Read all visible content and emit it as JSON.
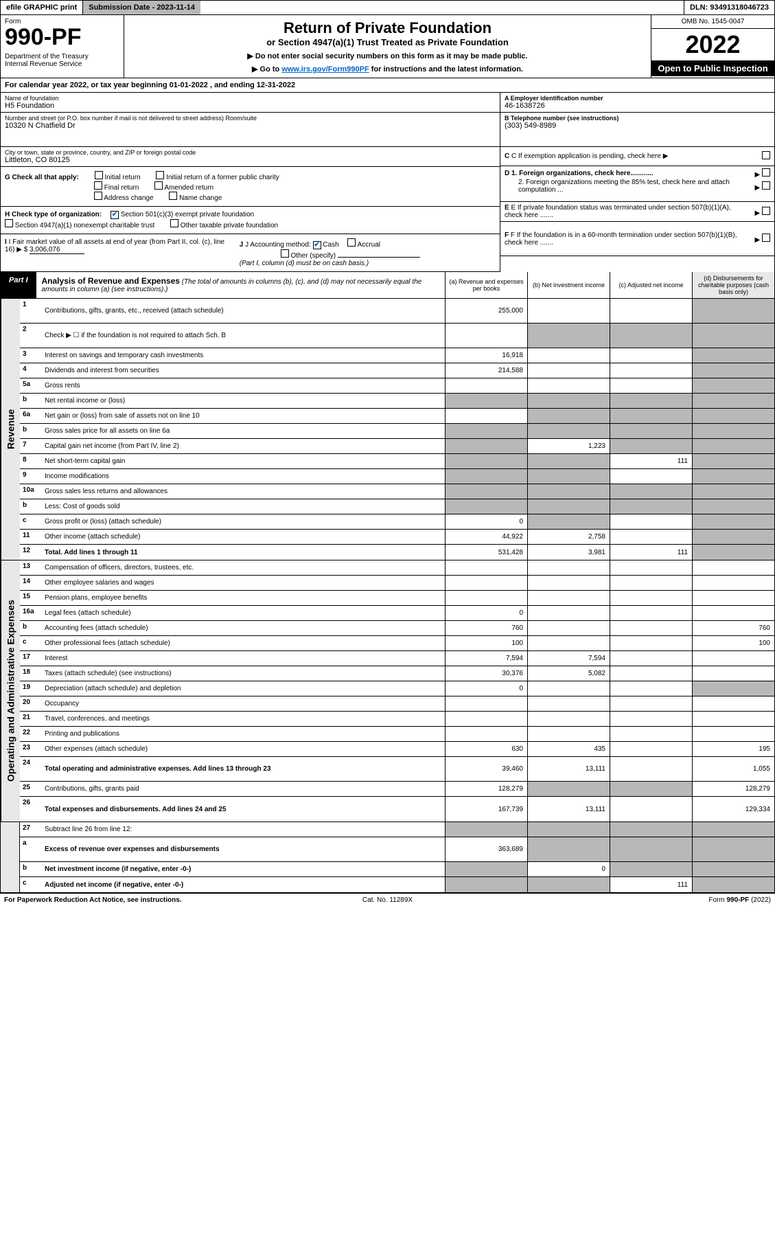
{
  "top": {
    "efile": "efile GRAPHIC print",
    "sub_label": "Submission Date - 2023-11-14",
    "dln": "DLN: 93491318046723"
  },
  "header": {
    "form_label": "Form",
    "form_no": "990-PF",
    "dept": "Department of the Treasury\nInternal Revenue Service",
    "title": "Return of Private Foundation",
    "subtitle": "or Section 4947(a)(1) Trust Treated as Private Foundation",
    "note1": "▶ Do not enter social security numbers on this form as it may be made public.",
    "note2_pre": "▶ Go to ",
    "note2_link": "www.irs.gov/Form990PF",
    "note2_post": " for instructions and the latest information.",
    "omb": "OMB No. 1545-0047",
    "year": "2022",
    "inspect": "Open to Public Inspection"
  },
  "cal_year": "For calendar year 2022, or tax year beginning 01-01-2022                          , and ending 12-31-2022",
  "info": {
    "name_label": "Name of foundation",
    "name": "H5 Foundation",
    "addr_label": "Number and street (or P.O. box number if mail is not delivered to street address)          Room/suite",
    "addr": "10320 N Chatfield Dr",
    "city_label": "City or town, state or province, country, and ZIP or foreign postal code",
    "city": "Littleton, CO  80125",
    "a_label": "A Employer identification number",
    "a_val": "46-1638726",
    "b_label": "B Telephone number (see instructions)",
    "b_val": "(303) 549-8989",
    "c_label": "C If exemption application is pending, check here",
    "d1": "D 1. Foreign organizations, check here............",
    "d2": "2. Foreign organizations meeting the 85% test, check here and attach computation ...",
    "e_label": "E  If private foundation status was terminated under section 507(b)(1)(A), check here .......",
    "f_label": "F  If the foundation is in a 60-month termination under section 507(b)(1)(B), check here .......",
    "g_label": "G Check all that apply:",
    "g_opts": [
      "Initial return",
      "Initial return of a former public charity",
      "Final return",
      "Amended return",
      "Address change",
      "Name change"
    ],
    "h_label": "H Check type of organization:",
    "h_opts": [
      "Section 501(c)(3) exempt private foundation",
      "Section 4947(a)(1) nonexempt charitable trust",
      "Other taxable private foundation"
    ],
    "i_label": "I Fair market value of all assets at end of year (from Part II, col. (c), line 16)",
    "i_val": "3,006,076",
    "j_label": "J Accounting method:",
    "j_opts": [
      "Cash",
      "Accrual",
      "Other (specify)"
    ],
    "j_note": "(Part I, column (d) must be on cash basis.)"
  },
  "part1": {
    "label": "Part I",
    "title": "Analysis of Revenue and Expenses",
    "title_note": "(The total of amounts in columns (b), (c), and (d) may not necessarily equal the amounts in column (a) (see instructions).)",
    "col_a": "(a)   Revenue and expenses per books",
    "col_b": "(b)   Net investment income",
    "col_c": "(c)   Adjusted net income",
    "col_d": "(d)   Disbursements for charitable purposes (cash basis only)"
  },
  "side_labels": {
    "revenue": "Revenue",
    "expenses": "Operating and Administrative Expenses"
  },
  "rows": [
    {
      "n": "1",
      "desc": "Contributions, gifts, grants, etc., received (attach schedule)",
      "a": "255,000",
      "b": "",
      "c": "",
      "d": "",
      "d_grey": true,
      "tall": true
    },
    {
      "n": "2",
      "desc": "Check ▶ ☐ if the foundation is not required to attach Sch. B",
      "a": "",
      "b": "",
      "c": "",
      "d": "",
      "all_grey_bcd": true,
      "tall": true
    },
    {
      "n": "3",
      "desc": "Interest on savings and temporary cash investments",
      "a": "16,918",
      "b": "",
      "c": "",
      "d": "",
      "d_grey": true
    },
    {
      "n": "4",
      "desc": "Dividends and interest from securities",
      "a": "214,588",
      "b": "",
      "c": "",
      "d": "",
      "d_grey": true
    },
    {
      "n": "5a",
      "desc": "Gross rents",
      "a": "",
      "b": "",
      "c": "",
      "d": "",
      "d_grey": true
    },
    {
      "n": "b",
      "desc": "Net rental income or (loss)",
      "a": "",
      "b": "",
      "c": "",
      "d": "",
      "all_grey": true,
      "short": true
    },
    {
      "n": "6a",
      "desc": "Net gain or (loss) from sale of assets not on line 10",
      "a": "",
      "b": "",
      "c": "",
      "d": "",
      "bcd_grey": true
    },
    {
      "n": "b",
      "desc": "Gross sales price for all assets on line 6a",
      "a": "",
      "b": "",
      "c": "",
      "d": "",
      "all_grey": true,
      "short": true
    },
    {
      "n": "7",
      "desc": "Capital gain net income (from Part IV, line 2)",
      "a": "",
      "b": "1,223",
      "c": "",
      "d": "",
      "a_grey": true,
      "cd_grey": true
    },
    {
      "n": "8",
      "desc": "Net short-term capital gain",
      "a": "",
      "b": "",
      "c": "111",
      "d": "",
      "ab_grey": true,
      "d_grey": true
    },
    {
      "n": "9",
      "desc": "Income modifications",
      "a": "",
      "b": "",
      "c": "",
      "d": "",
      "ab_grey": true,
      "d_grey": true
    },
    {
      "n": "10a",
      "desc": "Gross sales less returns and allowances",
      "a": "",
      "b": "",
      "c": "",
      "d": "",
      "all_grey": true,
      "short": true
    },
    {
      "n": "b",
      "desc": "Less: Cost of goods sold",
      "a": "",
      "b": "",
      "c": "",
      "d": "",
      "all_grey": true,
      "short": true
    },
    {
      "n": "c",
      "desc": "Gross profit or (loss) (attach schedule)",
      "a": "0",
      "b": "",
      "c": "",
      "d": "",
      "b_grey": true,
      "d_grey": true
    },
    {
      "n": "11",
      "desc": "Other income (attach schedule)",
      "a": "44,922",
      "b": "2,758",
      "c": "",
      "d": "",
      "d_grey": true
    },
    {
      "n": "12",
      "desc": "Total. Add lines 1 through 11",
      "a": "531,428",
      "b": "3,981",
      "c": "111",
      "d": "",
      "d_grey": true,
      "bold": true
    }
  ],
  "exp_rows": [
    {
      "n": "13",
      "desc": "Compensation of officers, directors, trustees, etc.",
      "a": "",
      "b": "",
      "c": "",
      "d": ""
    },
    {
      "n": "14",
      "desc": "Other employee salaries and wages",
      "a": "",
      "b": "",
      "c": "",
      "d": ""
    },
    {
      "n": "15",
      "desc": "Pension plans, employee benefits",
      "a": "",
      "b": "",
      "c": "",
      "d": ""
    },
    {
      "n": "16a",
      "desc": "Legal fees (attach schedule)",
      "a": "0",
      "b": "",
      "c": "",
      "d": ""
    },
    {
      "n": "b",
      "desc": "Accounting fees (attach schedule)",
      "a": "760",
      "b": "",
      "c": "",
      "d": "760"
    },
    {
      "n": "c",
      "desc": "Other professional fees (attach schedule)",
      "a": "100",
      "b": "",
      "c": "",
      "d": "100"
    },
    {
      "n": "17",
      "desc": "Interest",
      "a": "7,594",
      "b": "7,594",
      "c": "",
      "d": ""
    },
    {
      "n": "18",
      "desc": "Taxes (attach schedule) (see instructions)",
      "a": "30,376",
      "b": "5,082",
      "c": "",
      "d": ""
    },
    {
      "n": "19",
      "desc": "Depreciation (attach schedule) and depletion",
      "a": "0",
      "b": "",
      "c": "",
      "d": "",
      "d_grey": true
    },
    {
      "n": "20",
      "desc": "Occupancy",
      "a": "",
      "b": "",
      "c": "",
      "d": ""
    },
    {
      "n": "21",
      "desc": "Travel, conferences, and meetings",
      "a": "",
      "b": "",
      "c": "",
      "d": ""
    },
    {
      "n": "22",
      "desc": "Printing and publications",
      "a": "",
      "b": "",
      "c": "",
      "d": ""
    },
    {
      "n": "23",
      "desc": "Other expenses (attach schedule)",
      "a": "630",
      "b": "435",
      "c": "",
      "d": "195"
    },
    {
      "n": "24",
      "desc": "Total operating and administrative expenses. Add lines 13 through 23",
      "a": "39,460",
      "b": "13,111",
      "c": "",
      "d": "1,055",
      "bold": true,
      "tall": true
    },
    {
      "n": "25",
      "desc": "Contributions, gifts, grants paid",
      "a": "128,279",
      "b": "",
      "c": "",
      "d": "128,279",
      "bc_grey": true
    },
    {
      "n": "26",
      "desc": "Total expenses and disbursements. Add lines 24 and 25",
      "a": "167,739",
      "b": "13,111",
      "c": "",
      "d": "129,334",
      "bold": true,
      "tall": true
    }
  ],
  "final_rows": [
    {
      "n": "27",
      "desc": "Subtract line 26 from line 12:",
      "a": "",
      "b": "",
      "c": "",
      "d": "",
      "all_grey": true
    },
    {
      "n": "a",
      "desc": "Excess of revenue over expenses and disbursements",
      "a": "363,689",
      "b": "",
      "c": "",
      "d": "",
      "bcd_grey": true,
      "bold": true,
      "tall": true
    },
    {
      "n": "b",
      "desc": "Net investment income (if negative, enter -0-)",
      "a": "",
      "b": "0",
      "c": "",
      "d": "",
      "acd_grey": true,
      "bold": true
    },
    {
      "n": "c",
      "desc": "Adjusted net income (if negative, enter -0-)",
      "a": "",
      "b": "",
      "c": "111",
      "d": "",
      "abd_grey": true,
      "bold": true
    }
  ],
  "footer": {
    "left": "For Paperwork Reduction Act Notice, see instructions.",
    "mid": "Cat. No. 11289X",
    "right": "Form 990-PF (2022)"
  }
}
